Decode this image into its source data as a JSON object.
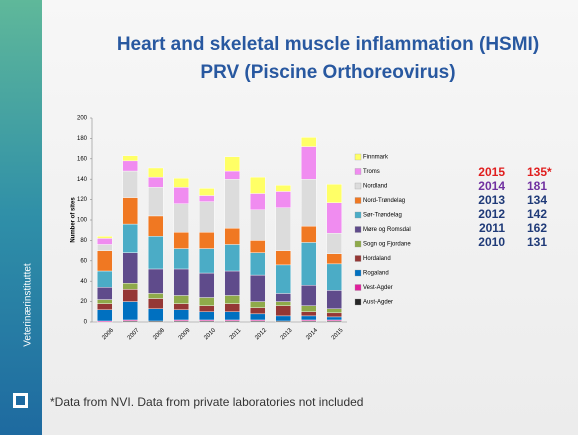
{
  "slide": {
    "title": [
      "Heart and skeletal muscle inflammation (HSMI)",
      "PRV (Piscine Orthoreovirus)"
    ],
    "brand": "Veterinærinstituttet",
    "footnote": "*Data from NVI. Data from private laboratories not included",
    "totals": [
      {
        "year": 2015,
        "value": "135*",
        "color": "#e01e1e"
      },
      {
        "year": 2014,
        "value": 181,
        "color": "#7030a0"
      },
      {
        "year": 2013,
        "value": 134,
        "color": "#1f3a78"
      },
      {
        "year": 2012,
        "value": 142,
        "color": "#1f3a78"
      },
      {
        "year": 2011,
        "value": 162,
        "color": "#1f3a78"
      },
      {
        "year": 2010,
        "value": 131,
        "color": "#1f3a78"
      }
    ]
  },
  "chart_data": {
    "type": "stacked_bar",
    "y_label": "Number of sites",
    "categories": [
      "2006",
      "2007",
      "2008",
      "2009",
      "2010",
      "2011",
      "2012",
      "2013",
      "2014",
      "2015"
    ],
    "ylim": [
      0,
      200
    ],
    "yticks": [
      0,
      20,
      40,
      60,
      80,
      100,
      120,
      140,
      160,
      180,
      200
    ],
    "series": [
      {
        "name": "Aust-Agder",
        "color": "#262626",
        "values": [
          0,
          1,
          1,
          1,
          1,
          1,
          1,
          1,
          1,
          1
        ]
      },
      {
        "name": "Vest-Agder",
        "color": "#e0209c",
        "values": [
          1,
          1,
          0,
          1,
          1,
          1,
          1,
          0,
          1,
          1
        ]
      },
      {
        "name": "Rogaland",
        "color": "#0070c0",
        "values": [
          11,
          18,
          12,
          10,
          8,
          8,
          6,
          5,
          4,
          3
        ]
      },
      {
        "name": "Hordaland",
        "color": "#953735",
        "values": [
          6,
          12,
          10,
          6,
          6,
          8,
          6,
          10,
          4,
          4
        ]
      },
      {
        "name": "Sogn og Fjordane",
        "color": "#8faa4a",
        "values": [
          4,
          6,
          5,
          8,
          8,
          8,
          6,
          4,
          6,
          4
        ]
      },
      {
        "name": "Møre og Romsdal",
        "color": "#5f4b8b",
        "values": [
          12,
          30,
          24,
          26,
          24,
          24,
          26,
          8,
          20,
          18
        ]
      },
      {
        "name": "Sør-Trøndelag",
        "color": "#4bacc6",
        "values": [
          16,
          28,
          32,
          20,
          24,
          26,
          22,
          28,
          42,
          26
        ]
      },
      {
        "name": "Nord-Trøndelag",
        "color": "#f07822",
        "values": [
          20,
          26,
          20,
          16,
          16,
          16,
          12,
          14,
          16,
          10
        ]
      },
      {
        "name": "Nordland",
        "color": "#dcdcdc",
        "values": [
          6,
          26,
          28,
          28,
          30,
          48,
          30,
          42,
          46,
          20
        ]
      },
      {
        "name": "Troms",
        "color": "#f08cf0",
        "values": [
          6,
          10,
          10,
          16,
          6,
          8,
          16,
          16,
          32,
          30
        ]
      },
      {
        "name": "Finnmark",
        "color": "#ffff66",
        "values": [
          2,
          5,
          9,
          9,
          7,
          14,
          16,
          6,
          9,
          18
        ]
      }
    ]
  }
}
